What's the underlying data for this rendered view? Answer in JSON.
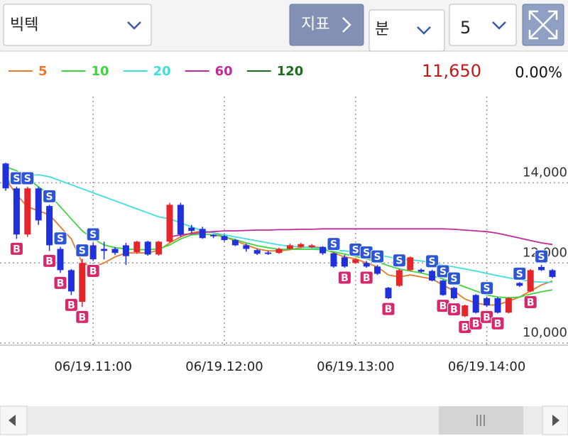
{
  "toolbar": {
    "stock": "빅텍",
    "indicator_button": "지표",
    "period_unit": "분",
    "period_value": "5"
  },
  "quote": {
    "price": "11,650",
    "change": "0.00%"
  },
  "chart_data": {
    "type": "candlestick",
    "up_color": "#e4262a",
    "down_color": "#1f30dc",
    "categories": [
      null,
      null,
      null,
      null,
      null,
      null,
      null,
      null,
      "06/19.11:00",
      null,
      null,
      null,
      null,
      null,
      null,
      null,
      null,
      null,
      null,
      null,
      "06/19.12:00",
      null,
      null,
      null,
      null,
      null,
      null,
      null,
      null,
      null,
      null,
      null,
      "06/19.13:00",
      null,
      null,
      null,
      null,
      null,
      null,
      null,
      null,
      null,
      null,
      null,
      "06/19.14:00",
      null,
      null,
      null,
      null,
      null,
      null
    ],
    "open": [
      14480,
      13860,
      12710,
      13860,
      13420,
      12350,
      11820,
      11030,
      12440,
      12350,
      12350,
      12440,
      12270,
      12530,
      12210,
      12530,
      13450,
      12880,
      12850,
      12700,
      12670,
      12570,
      12440,
      12320,
      12260,
      12250,
      12350,
      12400,
      12390,
      12400,
      12240,
      12140,
      12000,
      12000,
      11910,
      11380,
      11430,
      11820,
      11830,
      11800,
      11560,
      11380,
      10670,
      11200,
      11120,
      11120,
      10760,
      11500,
      11290,
      11900,
      11820
    ],
    "high": [
      14500,
      13900,
      13900,
      13900,
      13450,
      12400,
      11850,
      12100,
      12500,
      12530,
      12400,
      12500,
      12550,
      12550,
      12550,
      13500,
      13500,
      12950,
      12900,
      12720,
      12700,
      12600,
      12480,
      12350,
      12300,
      12380,
      12480,
      12500,
      12470,
      12420,
      12260,
      12200,
      12120,
      12050,
      11950,
      11400,
      11850,
      12160,
      11860,
      11830,
      11580,
      11400,
      10960,
      11220,
      11160,
      11150,
      11150,
      11520,
      11850,
      11950,
      11850
    ],
    "low": [
      13800,
      12600,
      12650,
      12950,
      12300,
      11750,
      11200,
      10900,
      12050,
      12090,
      12200,
      11950,
      12230,
      12180,
      12180,
      12500,
      12650,
      12750,
      12600,
      12620,
      12540,
      12420,
      12280,
      12200,
      12200,
      12230,
      12330,
      12380,
      12370,
      12200,
      11880,
      11880,
      11980,
      11880,
      11700,
      11100,
      11400,
      11800,
      11750,
      11540,
      11180,
      11090,
      10650,
      10740,
      10900,
      10740,
      10740,
      11400,
      11270,
      11800,
      11620
    ],
    "close": [
      13860,
      12710,
      13860,
      13060,
      12440,
      11820,
      11290,
      12000,
      12090,
      12300,
      12250,
      12170,
      12530,
      12210,
      12530,
      13450,
      12710,
      12800,
      12620,
      12670,
      12570,
      12440,
      12350,
      12230,
      12230,
      12350,
      12440,
      12470,
      12440,
      12240,
      11910,
      11910,
      12090,
      11910,
      11730,
      11120,
      11820,
      12140,
      11780,
      11560,
      11200,
      11120,
      10940,
      10760,
      10940,
      10760,
      11120,
      11430,
      11820,
      11820,
      11650
    ],
    "series": [
      {
        "name": "5",
        "color": "#e8792a",
        "values": [
          14100,
          13700,
          13400,
          13300,
          13200,
          12900,
          12600,
          12000,
          11900,
          12000,
          12150,
          12250,
          12250,
          12250,
          12320,
          12500,
          12650,
          12750,
          12800,
          12750,
          12650,
          12550,
          12450,
          12350,
          12300,
          12300,
          12330,
          12380,
          12400,
          12380,
          12250,
          12150,
          12100,
          12000,
          11900,
          11700,
          11650,
          11700,
          11650,
          11600,
          11450,
          11300,
          11100,
          11000,
          10950,
          10950,
          11050,
          11150,
          11300,
          11450,
          11550
        ]
      },
      {
        "name": "10",
        "color": "#3fd43f",
        "values": [
          14400,
          14300,
          14100,
          13900,
          13700,
          13400,
          13100,
          12800,
          12600,
          12450,
          12380,
          12350,
          12330,
          12330,
          12350,
          12450,
          12600,
          12700,
          12720,
          12700,
          12650,
          12580,
          12500,
          12430,
          12380,
          12340,
          12340,
          12340,
          12340,
          12330,
          12280,
          12220,
          12160,
          12100,
          12030,
          11930,
          11850,
          11800,
          11750,
          11680,
          11600,
          11500,
          11400,
          11300,
          11200,
          11150,
          11130,
          11150,
          11220,
          11280,
          11330
        ]
      },
      {
        "name": "20",
        "color": "#3fdede",
        "values": [
          14000,
          14100,
          14180,
          14200,
          14150,
          14050,
          13950,
          13850,
          13750,
          13650,
          13550,
          13450,
          13350,
          13250,
          13150,
          13100,
          13000,
          12900,
          12800,
          12750,
          12700,
          12650,
          12600,
          12550,
          12500,
          12450,
          12420,
          12400,
          12380,
          12350,
          12320,
          12300,
          12270,
          12240,
          12200,
          12150,
          12100,
          12080,
          12050,
          12000,
          11950,
          11900,
          11850,
          11800,
          11740,
          11680,
          11630,
          11580,
          11540,
          11520,
          11520
        ]
      },
      {
        "name": "60",
        "color": "#c02a9c",
        "values": [
          null,
          null,
          null,
          null,
          null,
          null,
          null,
          null,
          null,
          null,
          null,
          null,
          null,
          null,
          null,
          12650,
          12700,
          12730,
          12760,
          12780,
          12800,
          12800,
          12810,
          12820,
          12820,
          12830,
          12830,
          12840,
          12840,
          12850,
          12850,
          12850,
          12850,
          12850,
          12850,
          12850,
          12850,
          12850,
          12850,
          12850,
          12850,
          12840,
          12820,
          12800,
          12780,
          12740,
          12680,
          12620,
          12560,
          12500,
          12460
        ]
      },
      {
        "name": "120",
        "color": "#1b6e1b",
        "values": [
          null,
          null,
          null,
          null,
          null,
          null,
          null,
          null,
          null,
          null,
          null,
          null,
          null,
          null,
          null,
          null,
          null,
          null,
          null,
          null,
          null,
          null,
          null,
          null,
          null,
          null,
          null,
          null,
          null,
          null,
          null,
          null,
          null,
          null,
          null,
          null,
          null,
          null,
          null,
          null,
          null,
          null,
          null,
          null,
          null,
          null,
          null,
          null,
          null,
          null,
          null
        ]
      }
    ],
    "signals": [
      {
        "index": 1,
        "label": "S"
      },
      {
        "index": 2,
        "label": "S"
      },
      {
        "index": 4,
        "label": "S"
      },
      {
        "index": 5,
        "label": "S"
      },
      {
        "index": 7,
        "label": "S"
      },
      {
        "index": 8,
        "label": "S"
      },
      {
        "index": 30,
        "label": "S"
      },
      {
        "index": 32,
        "label": "S"
      },
      {
        "index": 33,
        "label": "S"
      },
      {
        "index": 34,
        "label": "S"
      },
      {
        "index": 36,
        "label": "S"
      },
      {
        "index": 39,
        "label": "S"
      },
      {
        "index": 40,
        "label": "S"
      },
      {
        "index": 41,
        "label": "S"
      },
      {
        "index": 44,
        "label": "S"
      },
      {
        "index": 47,
        "label": "S"
      },
      {
        "index": 49,
        "label": "S"
      },
      {
        "index": 1,
        "label": "B"
      },
      {
        "index": 4,
        "label": "B"
      },
      {
        "index": 5,
        "label": "B"
      },
      {
        "index": 6,
        "label": "B"
      },
      {
        "index": 7,
        "label": "B"
      },
      {
        "index": 8,
        "label": "B"
      },
      {
        "index": 31,
        "label": "B"
      },
      {
        "index": 33,
        "label": "B"
      },
      {
        "index": 35,
        "label": "B"
      },
      {
        "index": 40,
        "label": "B"
      },
      {
        "index": 41,
        "label": "B"
      },
      {
        "index": 42,
        "label": "B"
      },
      {
        "index": 43,
        "label": "B"
      },
      {
        "index": 44,
        "label": "B"
      },
      {
        "index": 45,
        "label": "B"
      },
      {
        "index": 48,
        "label": "B"
      }
    ],
    "ylim": [
      9950,
      16150
    ],
    "yticks": [
      {
        "value": 14000,
        "label": "14,000"
      },
      {
        "value": 12000,
        "label": "12,000"
      },
      {
        "value": 10000,
        "label": "10,000"
      }
    ],
    "grid": true
  }
}
